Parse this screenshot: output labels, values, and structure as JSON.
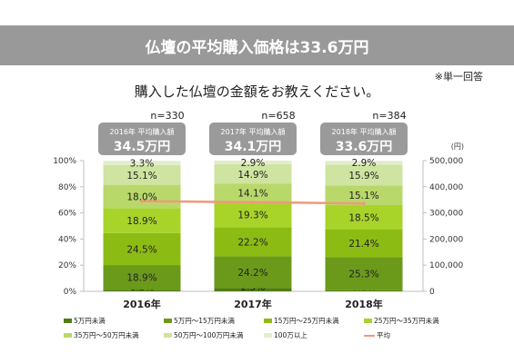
{
  "header": {
    "title": "仏壇の平均購入価格は33.6万円"
  },
  "note": "※単一回答",
  "question": "購入した仏壇の金額をお教えください。",
  "colors": {
    "banner": "#999999",
    "badge": "#9a9a9a",
    "avg_line": "#f0997a",
    "segments": [
      "#4f7d14",
      "#6b9a1b",
      "#8cbb14",
      "#a8d42a",
      "#b9d86a",
      "#cfe4a0",
      "#e2eecb"
    ]
  },
  "chart_data": {
    "type": "bar",
    "stacked": "percent",
    "categories": [
      "2016年",
      "2017年",
      "2018年"
    ],
    "n_labels": [
      "n=330",
      "n=658",
      "n=384"
    ],
    "badges": [
      {
        "caption": "2016年 平均購入額",
        "value": "34.5万円"
      },
      {
        "caption": "2017年 平均購入額",
        "value": "34.1万円"
      },
      {
        "caption": "2018年 平均購入額",
        "value": "33.6万円"
      }
    ],
    "series": [
      {
        "name": "5万円未満",
        "values": [
          1.2,
          2.5,
          0.8
        ],
        "labels": [
          "1.2%",
          "2.5%",
          "0.8%"
        ]
      },
      {
        "name": "5万円～15万円未満",
        "values": [
          18.9,
          24.2,
          25.3
        ],
        "labels": [
          "18.9%",
          "24.2%",
          "25.3%"
        ]
      },
      {
        "name": "15万円～25万円未満",
        "values": [
          24.5,
          22.2,
          21.4
        ],
        "labels": [
          "24.5%",
          "22.2%",
          "21.4%"
        ]
      },
      {
        "name": "25万円～35万円未満",
        "values": [
          18.9,
          19.3,
          18.5
        ],
        "labels": [
          "18.9%",
          "19.3%",
          "18.5%"
        ]
      },
      {
        "name": "35万円～50万円未満",
        "values": [
          18.0,
          14.1,
          15.1
        ],
        "labels": [
          "18.0%",
          "14.1%",
          "15.1%"
        ]
      },
      {
        "name": "50万円～100万円未満",
        "values": [
          15.1,
          14.9,
          15.9
        ],
        "labels": [
          "15.1%",
          "14.9%",
          "15.9%"
        ]
      },
      {
        "name": "100万以上",
        "values": [
          3.3,
          2.9,
          2.9
        ],
        "labels": [
          "3.3%",
          "2.9%",
          "2.9%"
        ]
      }
    ],
    "line": {
      "name": "平均",
      "values": [
        345000,
        341000,
        336000
      ]
    },
    "y_left": {
      "ticks": [
        "0%",
        "20%",
        "40%",
        "60%",
        "80%",
        "100%"
      ],
      "range": [
        0,
        100
      ]
    },
    "y_right": {
      "unit": "(円)",
      "ticks": [
        "0",
        "100,000",
        "200,000",
        "300,000",
        "400,000",
        "500,000"
      ],
      "range": [
        0,
        500000
      ]
    },
    "legend": [
      {
        "name": "5万円未満",
        "kind": "bar"
      },
      {
        "name": "5万円～15万円未満",
        "kind": "bar"
      },
      {
        "name": "15万円～25万円未満",
        "kind": "bar"
      },
      {
        "name": "25万円～35万円未満",
        "kind": "bar"
      },
      {
        "name": "35万円～50万円未満",
        "kind": "bar"
      },
      {
        "name": "50万円～100万円未満",
        "kind": "bar"
      },
      {
        "name": "100万以上",
        "kind": "bar"
      },
      {
        "name": "平均",
        "kind": "line"
      }
    ],
    "legend_position": "bottom"
  }
}
